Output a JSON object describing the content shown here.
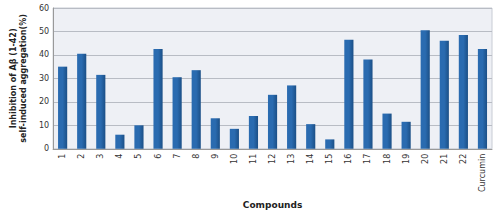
{
  "chart_data": {
    "type": "bar",
    "x_label": "Compounds",
    "y_label": "Inhibition of Aβ (1-42) self-induced aggregation(%)",
    "categories": [
      "1",
      "2",
      "3",
      "4",
      "5",
      "6",
      "7",
      "8",
      "9",
      "10",
      "11",
      "12",
      "13",
      "14",
      "15",
      "16",
      "17",
      "18",
      "19",
      "20",
      "21",
      "22",
      "Curcumin"
    ],
    "values": [
      35,
      40.5,
      31.5,
      6,
      10,
      42.5,
      30.5,
      33.5,
      13,
      8.5,
      14,
      23,
      27,
      10.5,
      4,
      46.5,
      38,
      15,
      11.5,
      50.5,
      46,
      48.5,
      42.5
    ],
    "color": "#2a6bb0",
    "ylim": [
      0,
      60
    ],
    "yticks": [
      0,
      10,
      20,
      30,
      40,
      50,
      60
    ],
    "grid": true
  }
}
